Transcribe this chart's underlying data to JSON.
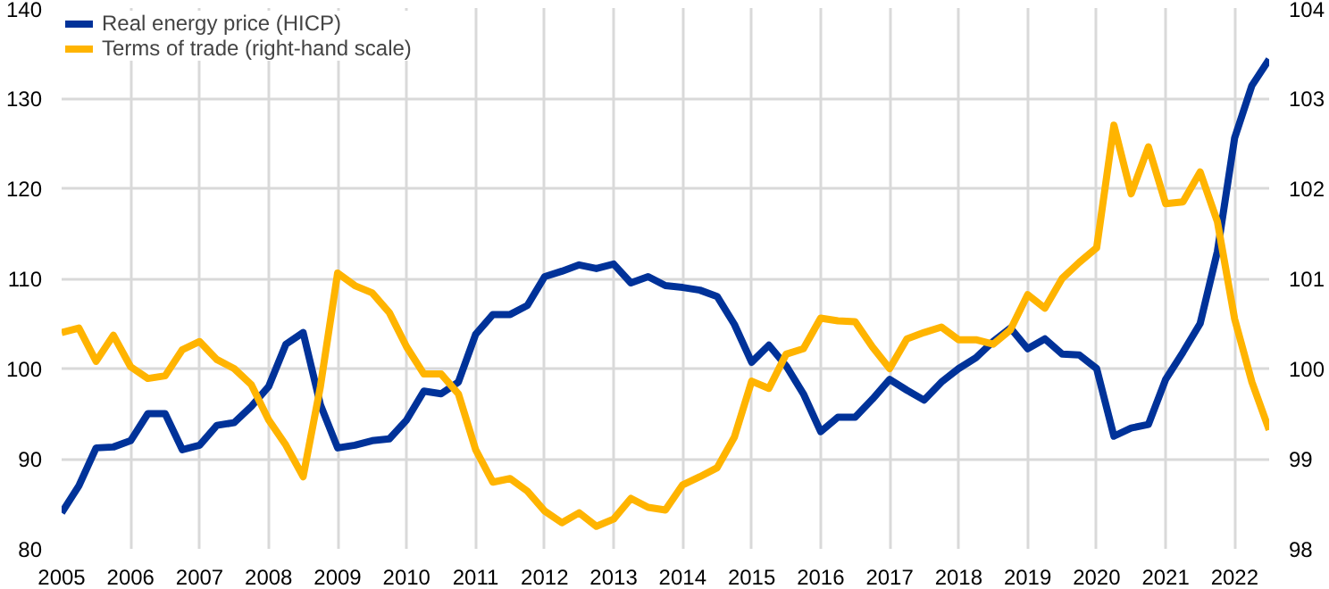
{
  "chart_data": {
    "type": "line",
    "legend": "top left",
    "grid": true,
    "x": [
      2005,
      2005.25,
      2005.5,
      2005.75,
      2006,
      2006.25,
      2006.5,
      2006.75,
      2007,
      2007.25,
      2007.5,
      2007.75,
      2008,
      2008.25,
      2008.5,
      2008.75,
      2009,
      2009.25,
      2009.5,
      2009.75,
      2010,
      2010.25,
      2010.5,
      2010.75,
      2011,
      2011.25,
      2011.5,
      2011.75,
      2012,
      2012.25,
      2012.5,
      2012.75,
      2013,
      2013.25,
      2013.5,
      2013.75,
      2014,
      2014.25,
      2014.5,
      2014.75,
      2015,
      2015.25,
      2015.5,
      2015.75,
      2016,
      2016.25,
      2016.5,
      2016.75,
      2017,
      2017.25,
      2017.5,
      2017.75,
      2018,
      2018.25,
      2018.5,
      2018.75,
      2019,
      2019.25,
      2019.5,
      2019.75,
      2020,
      2020.25,
      2020.5,
      2020.75,
      2021,
      2021.25,
      2021.5,
      2021.75,
      2022,
      2022.25,
      2022.5
    ],
    "xlim": [
      2005,
      2022.5
    ],
    "xticks": [
      2005,
      2006,
      2007,
      2008,
      2009,
      2010,
      2011,
      2012,
      2013,
      2014,
      2015,
      2016,
      2017,
      2018,
      2019,
      2020,
      2021,
      2022
    ],
    "ylim": [
      80,
      140
    ],
    "yticks": [
      80,
      90,
      100,
      110,
      120,
      130,
      140
    ],
    "y2lim": [
      98,
      104
    ],
    "y2ticks": [
      98,
      99,
      100,
      101,
      102,
      103,
      104
    ],
    "series": [
      {
        "name": "Real energy price (HICP)",
        "color": "#003299",
        "values": [
          84,
          87,
          91.2,
          91.3,
          92,
          95,
          95,
          91,
          91.5,
          93.7,
          94,
          95.8,
          98,
          102.7,
          104,
          96,
          91.2,
          91.5,
          92,
          92.2,
          94.3,
          97.5,
          97.2,
          98.5,
          103.8,
          106,
          106,
          107,
          110.2,
          110.8,
          111.5,
          111.1,
          111.6,
          109.5,
          110.2,
          109.2,
          109,
          108.7,
          108,
          104.9,
          100.7,
          102.6,
          100.3,
          97.2,
          93,
          94.6,
          94.6,
          96.6,
          98.8,
          97.6,
          96.5,
          98.5,
          100,
          101.2,
          103,
          104.5,
          102.2,
          103.3,
          101.6,
          101.5,
          100,
          92.5,
          93.4,
          93.8,
          98.8,
          101.8,
          105,
          113,
          125.6,
          131.4,
          134.3
        ]
      },
      {
        "name": "Terms of trade (right-hand scale)",
        "color": "#ffb400",
        "axis": "y2",
        "values": [
          100.4,
          100.45,
          100.08,
          100.37,
          100.02,
          99.89,
          99.92,
          100.21,
          100.3,
          100.1,
          100.0,
          99.82,
          99.43,
          99.15,
          98.8,
          99.8,
          101.06,
          100.92,
          100.84,
          100.62,
          100.24,
          99.94,
          99.94,
          99.72,
          99.1,
          98.74,
          98.78,
          98.64,
          98.42,
          98.29,
          98.4,
          98.25,
          98.33,
          98.56,
          98.46,
          98.43,
          98.71,
          98.8,
          98.9,
          99.24,
          99.86,
          99.78,
          100.16,
          100.22,
          100.56,
          100.53,
          100.52,
          100.24,
          100.0,
          100.33,
          100.4,
          100.46,
          100.32,
          100.32,
          100.27,
          100.43,
          100.82,
          100.67,
          101.0,
          101.18,
          101.34,
          102.7,
          101.94,
          102.46,
          101.83,
          101.85,
          102.18,
          101.63,
          100.55,
          99.85,
          99.32
        ]
      }
    ]
  }
}
